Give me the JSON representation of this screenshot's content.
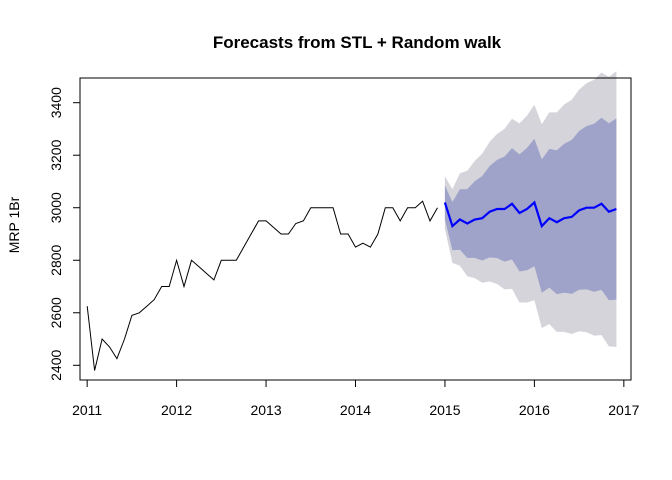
{
  "chart_data": {
    "type": "line",
    "title": "Forecasts from STL +  Random walk",
    "xlabel": "",
    "ylabel": "MRP 1Br",
    "xlim": [
      2011,
      2017
    ],
    "ylim": [
      2400,
      3400
    ],
    "x_ticks": [
      2011,
      2012,
      2013,
      2014,
      2015,
      2016,
      2017
    ],
    "y_ticks": [
      2400,
      2600,
      2800,
      3000,
      3200,
      3400
    ],
    "grid": false,
    "legend": "none",
    "colors": {
      "history": "#000000",
      "forecast": "#0000ff",
      "band80": "#a0a3c9",
      "band95": "#d4d4da"
    },
    "series": [
      {
        "x": [
          2011.0,
          2011.083,
          2011.167,
          2011.25,
          2011.333,
          2011.417,
          2011.5,
          2011.583,
          2011.667,
          2011.75,
          2011.833,
          2011.917,
          2012.0,
          2012.083,
          2012.167,
          2012.25,
          2012.333,
          2012.417,
          2012.5,
          2012.583,
          2012.667,
          2012.75,
          2012.833,
          2012.917,
          2013.0,
          2013.083,
          2013.167,
          2013.25,
          2013.333,
          2013.417,
          2013.5,
          2013.583,
          2013.667,
          2013.75,
          2013.833,
          2013.917,
          2014.0,
          2014.083,
          2014.167,
          2014.25,
          2014.333,
          2014.417,
          2014.5,
          2014.583,
          2014.667,
          2014.75,
          2014.833,
          2014.917
        ],
        "values": [
          2625,
          2380,
          2500,
          2470,
          2425,
          2500,
          2590,
          2600,
          2625,
          2650,
          2700,
          2700,
          2800,
          2700,
          2800,
          2775,
          2750,
          2725,
          2800,
          2800,
          2800,
          2850,
          2900,
          2950,
          2950,
          2925,
          2900,
          2900,
          2940,
          2950,
          3000,
          3000,
          3000,
          3000,
          2900,
          2900,
          2850,
          2865,
          2850,
          2900,
          3000,
          3000,
          2950,
          3000,
          3000,
          3025,
          2950,
          3000
        ]
      },
      {
        "x": [
          2015.0,
          2015.083,
          2015.167,
          2015.25,
          2015.333,
          2015.417,
          2015.5,
          2015.583,
          2015.667,
          2015.75,
          2015.833,
          2015.917,
          2016.0,
          2016.083,
          2016.167,
          2016.25,
          2016.333,
          2016.417,
          2016.5,
          2016.583,
          2016.667,
          2016.75,
          2016.833,
          2016.917
        ],
        "values": [
          3020,
          2930,
          2955,
          2940,
          2955,
          2960,
          2985,
          2995,
          2995,
          3015,
          2980,
          2995,
          3020,
          2930,
          2960,
          2945,
          2960,
          2965,
          2990,
          3000,
          3000,
          3015,
          2985,
          2995
        ],
        "lo80": [
          2955,
          2838,
          2840,
          2809,
          2809,
          2799,
          2811,
          2808,
          2795,
          2803,
          2757,
          2762,
          2777,
          2676,
          2696,
          2671,
          2676,
          2672,
          2688,
          2689,
          2680,
          2687,
          2648,
          2650
        ],
        "hi80": [
          3085,
          3022,
          3070,
          3071,
          3101,
          3121,
          3159,
          3182,
          3195,
          3227,
          3203,
          3228,
          3263,
          3184,
          3224,
          3219,
          3244,
          3258,
          3292,
          3311,
          3320,
          3343,
          3322,
          3340
        ],
        "lo95": [
          2920,
          2790,
          2779,
          2739,
          2732,
          2714,
          2719,
          2709,
          2689,
          2691,
          2639,
          2639,
          2648,
          2542,
          2557,
          2527,
          2527,
          2519,
          2530,
          2526,
          2513,
          2515,
          2472,
          2470
        ],
        "hi95": [
          3120,
          3070,
          3131,
          3141,
          3178,
          3206,
          3251,
          3281,
          3301,
          3339,
          3321,
          3351,
          3392,
          3318,
          3363,
          3363,
          3393,
          3411,
          3450,
          3474,
          3487,
          3515,
          3498,
          3520
        ]
      }
    ]
  }
}
